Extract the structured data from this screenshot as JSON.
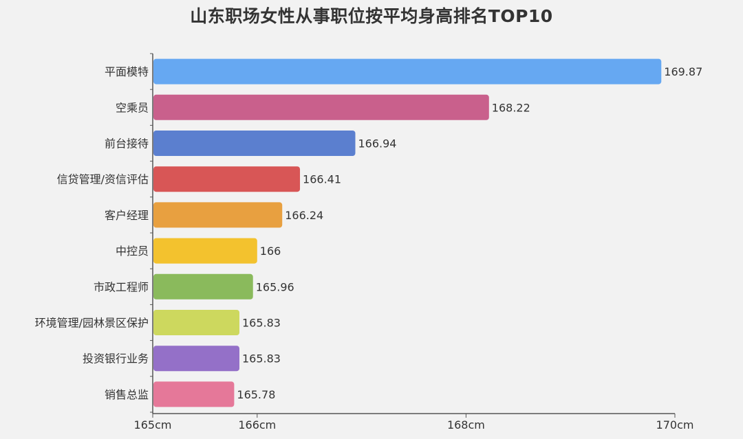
{
  "chart_data": {
    "type": "bar",
    "orientation": "horizontal",
    "title": "山东职场女性从事职位按平均身高排名TOP10",
    "categories": [
      "平面模特",
      "空乘员",
      "前台接待",
      "信贷管理/资信评估",
      "客户经理",
      "中控员",
      "市政工程师",
      "环境管理/园林景区保护",
      "投资银行业务",
      "销售总监"
    ],
    "values": [
      169.87,
      168.22,
      166.94,
      166.41,
      166.24,
      166,
      165.96,
      165.83,
      165.83,
      165.78
    ],
    "value_labels": [
      "169.87",
      "168.22",
      "166.94",
      "166.41",
      "166.24",
      "166",
      "165.96",
      "165.83",
      "165.83",
      "165.78"
    ],
    "colors": [
      "#66a8f2",
      "#c9608c",
      "#5b7fcf",
      "#d85656",
      "#e8a040",
      "#f3c22e",
      "#8aba5c",
      "#cdd85e",
      "#9470c8",
      "#e57899"
    ],
    "xlim": [
      165,
      170
    ],
    "xticks": [
      {
        "value": 165,
        "label": "165cm"
      },
      {
        "value": 166,
        "label": "166cm"
      },
      {
        "value": 168,
        "label": "168cm"
      },
      {
        "value": 170,
        "label": "170cm"
      }
    ],
    "xlabel": "",
    "ylabel": "",
    "grid": false,
    "legend": "none"
  }
}
